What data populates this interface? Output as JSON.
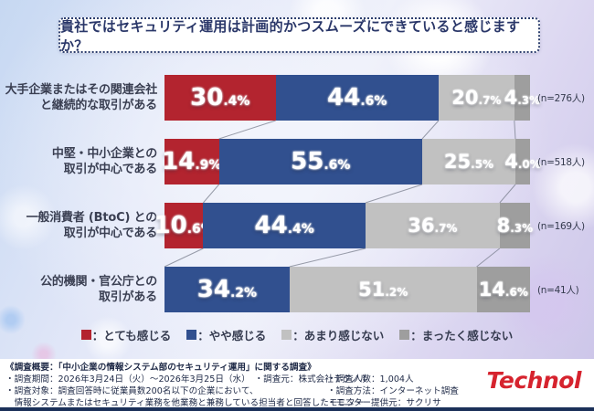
{
  "title": "貴社ではセキュリティ運用は計画的かつスムーズにできていると感じますか？",
  "chart_data": {
    "type": "bar",
    "stacked": true,
    "orientation": "horizontal",
    "unit": "%",
    "xlim": [
      0,
      100
    ],
    "grid": false,
    "legend_position": "bottom",
    "categories": [
      {
        "label_lines": [
          "大手企業またはその関連会社",
          "と継続的な取引がある"
        ],
        "n_label": "(n=276人)"
      },
      {
        "label_lines": [
          "中堅・中小企業との",
          "取引が中心である"
        ],
        "n_label": "(n=518人)"
      },
      {
        "label_lines": [
          "一般消費者 (BtoC) との",
          "取引が中心である"
        ],
        "n_label": "(n=169人)"
      },
      {
        "label_lines": [
          "公的機関・官公庁との",
          "取引がある"
        ],
        "n_label": "(n=41人)"
      }
    ],
    "series": [
      {
        "name": "とても感じる",
        "color": "#b3242f",
        "values": [
          30.4,
          14.9,
          10.6,
          0
        ]
      },
      {
        "name": "やや感じる",
        "color": "#31508f",
        "values": [
          44.6,
          55.6,
          44.4,
          34.2
        ]
      },
      {
        "name": "あまり感じない",
        "color": "#c1c1c1",
        "values": [
          20.7,
          25.5,
          36.7,
          51.2
        ]
      },
      {
        "name": "まったく感じない",
        "color": "#9e9e9e",
        "values": [
          4.3,
          4.0,
          8.3,
          14.6
        ]
      }
    ]
  },
  "legend": {
    "separator": "："
  },
  "footer": {
    "left_lines": [
      "《調査概要：「中小企業の情報システム部のセキュリティ運用」に関する調査》",
      "・調査期間：2026年3月24日（火）～2026年3月25日（水）　・調査元：株式会社テクノル",
      "・調査対象：調査回答時に従業員数200名以下の企業において、",
      "　情報システムまたはセキュリティ業務を他業務と兼務している担当者と回答したモニター"
    ],
    "right_lines": [
      "・調査人数：1,004人",
      "・調査方法：インターネット調査",
      "・モニター提供元：サクリサ"
    ],
    "logo_text": "Technol",
    "logo_color": "#d6232e"
  }
}
